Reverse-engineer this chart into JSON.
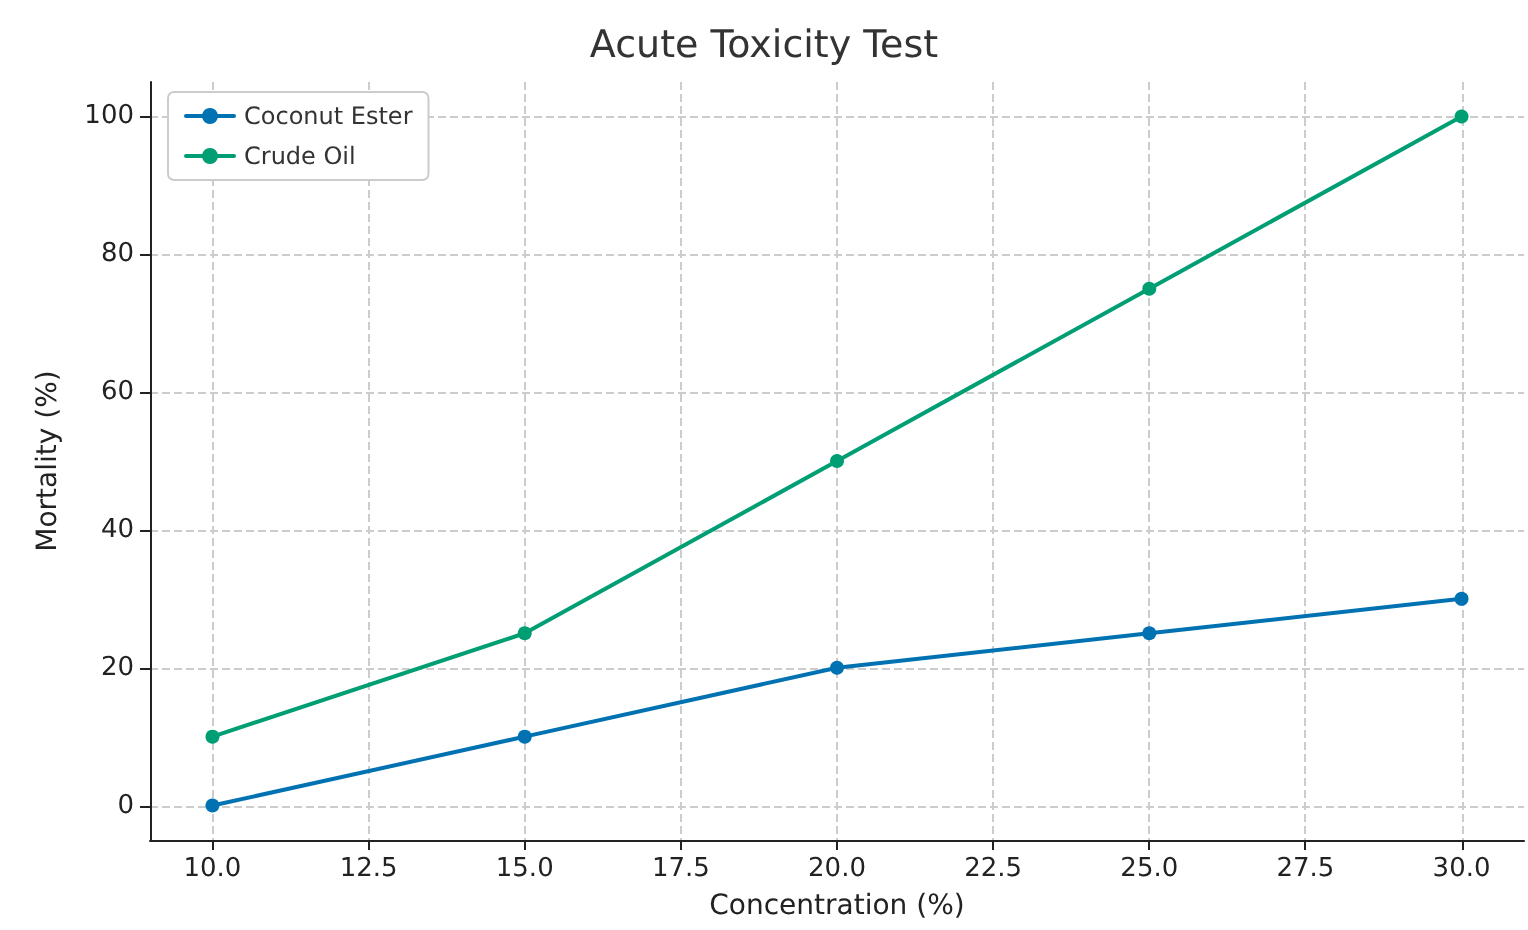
{
  "chart_data": {
    "type": "line",
    "title": "Acute Toxicity Test",
    "xlabel": "Concentration (%)",
    "ylabel": "Mortality (%)",
    "x": [
      10,
      15,
      20,
      25,
      30
    ],
    "series": [
      {
        "name": "Coconut Ester",
        "color": "#0072b2",
        "values": [
          0,
          10,
          20,
          25,
          30
        ]
      },
      {
        "name": "Crude Oil",
        "color": "#009e73",
        "values": [
          10,
          25,
          50,
          75,
          100
        ]
      }
    ],
    "xlim": [
      9,
      31
    ],
    "ylim": [
      -5,
      105
    ],
    "xticks": [
      {
        "value": 10,
        "label": "10.0"
      },
      {
        "value": 12.5,
        "label": "12.5"
      },
      {
        "value": 15,
        "label": "15.0"
      },
      {
        "value": 17.5,
        "label": "17.5"
      },
      {
        "value": 20,
        "label": "20.0"
      },
      {
        "value": 22.5,
        "label": "22.5"
      },
      {
        "value": 25,
        "label": "25.0"
      },
      {
        "value": 27.5,
        "label": "27.5"
      },
      {
        "value": 30,
        "label": "30.0"
      }
    ],
    "yticks": [
      0,
      20,
      40,
      60,
      80,
      100
    ],
    "grid": true,
    "legend": "top left",
    "marker": "circle",
    "line_style": "solid"
  }
}
